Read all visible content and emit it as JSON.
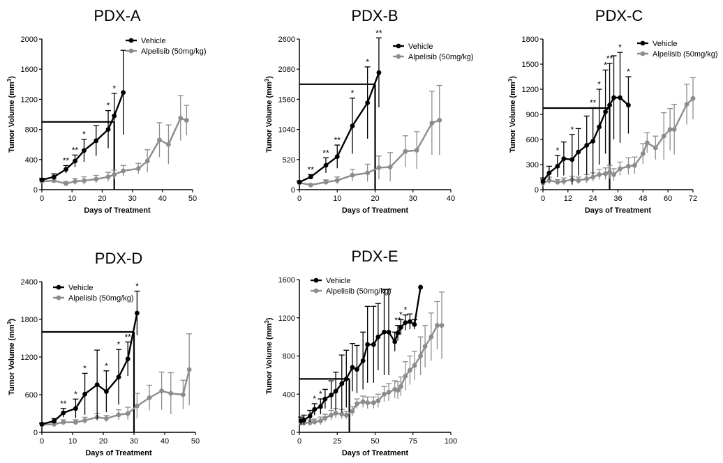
{
  "colors": {
    "vehicle": "#000000",
    "alpelisib": "#8c8c8c"
  },
  "chart_data": [
    {
      "type": "line",
      "title": "PDX-A",
      "xlabel": "Days of Treatment",
      "ylabel": "Tumor Volume (mm",
      "ylabel_sup": "3",
      "ylabel_close": ")",
      "xlim": [
        0,
        50
      ],
      "ylim": [
        0,
        2000
      ],
      "xticks": [
        0,
        10,
        20,
        30,
        40,
        50
      ],
      "yticks": [
        0,
        400,
        800,
        1200,
        1600,
        2000
      ],
      "legend_position": "top-right",
      "threshold": {
        "y": 900,
        "x": 24
      },
      "series": [
        {
          "name": "Vehicle",
          "color": "#000000",
          "x": [
            0,
            4,
            8,
            11,
            14,
            18,
            22,
            24,
            27
          ],
          "y": [
            130,
            170,
            270,
            380,
            520,
            650,
            800,
            980,
            1290
          ],
          "err": [
            20,
            40,
            50,
            80,
            150,
            200,
            250,
            300,
            560
          ],
          "stars": [
            "",
            "",
            "**",
            "**",
            "*",
            "",
            "*",
            "*",
            ""
          ]
        },
        {
          "name": "Alpelisib (50mg/kg)",
          "color": "#8c8c8c",
          "x": [
            0,
            4,
            8,
            11,
            14,
            18,
            22,
            24,
            27,
            32,
            35,
            39,
            42,
            46,
            48
          ],
          "y": [
            110,
            120,
            80,
            110,
            120,
            140,
            170,
            200,
            250,
            280,
            380,
            660,
            600,
            950,
            920
          ],
          "err": [
            20,
            30,
            30,
            40,
            50,
            50,
            60,
            60,
            70,
            70,
            150,
            230,
            260,
            300,
            200
          ],
          "stars": []
        }
      ]
    },
    {
      "type": "line",
      "title": "PDX-B",
      "xlabel": "Days of Treatment",
      "ylabel": "Tumor Volume (mm",
      "ylabel_sup": "3",
      "ylabel_close": ")",
      "xlim": [
        0,
        40
      ],
      "ylim": [
        0,
        2600
      ],
      "xticks": [
        0,
        10,
        20,
        30,
        40
      ],
      "yticks": [
        0,
        520,
        1040,
        1560,
        2080,
        2600
      ],
      "legend_position": "top-right",
      "threshold": {
        "y": 1820,
        "x": 20
      },
      "series": [
        {
          "name": "Vehicle",
          "color": "#000000",
          "x": [
            0,
            3,
            7,
            10,
            14,
            18,
            21
          ],
          "y": [
            130,
            220,
            420,
            570,
            1100,
            1500,
            2020
          ],
          "err": [
            20,
            40,
            130,
            200,
            480,
            620,
            600
          ],
          "stars": [
            "",
            "**",
            "**",
            "**",
            "*",
            "*",
            "**"
          ]
        },
        {
          "name": "Alpelisib (50mg/kg)",
          "color": "#8c8c8c",
          "x": [
            0,
            3,
            7,
            10,
            14,
            18,
            21,
            24,
            28,
            31,
            35,
            37
          ],
          "y": [
            120,
            80,
            130,
            160,
            250,
            290,
            380,
            390,
            660,
            680,
            1150,
            1200
          ],
          "err": [
            20,
            20,
            40,
            60,
            100,
            150,
            200,
            250,
            270,
            320,
            550,
            600
          ],
          "stars": []
        }
      ]
    },
    {
      "type": "line",
      "title": "PDX-C",
      "xlabel": "Days of Treatment",
      "ylabel": "Tumor Volume (mm",
      "ylabel_sup": "3",
      "ylabel_close": ")",
      "xlim": [
        0,
        72
      ],
      "ylim": [
        0,
        1800
      ],
      "xticks": [
        0,
        12,
        24,
        36,
        48,
        60,
        72
      ],
      "yticks": [
        0,
        300,
        600,
        900,
        1200,
        1500,
        1800
      ],
      "legend_position": "top-right",
      "threshold": {
        "y": 975,
        "x": 32
      },
      "series": [
        {
          "name": "Vehicle",
          "color": "#000000",
          "x": [
            0,
            3,
            7,
            10,
            14,
            17,
            21,
            24,
            27,
            30,
            32,
            34,
            37,
            41
          ],
          "y": [
            100,
            200,
            280,
            370,
            360,
            450,
            530,
            580,
            750,
            930,
            1010,
            1100,
            1100,
            1010
          ],
          "err": [
            40,
            80,
            130,
            200,
            300,
            280,
            350,
            400,
            450,
            500,
            500,
            500,
            540,
            340
          ],
          "stars": [
            "",
            "",
            "*",
            "",
            "*",
            "",
            "",
            "**",
            "*",
            "*",
            "**",
            "",
            "*",
            "*"
          ]
        },
        {
          "name": "Alpelisib (50mg/kg)",
          "color": "#8c8c8c",
          "x": [
            0,
            3,
            7,
            10,
            14,
            17,
            21,
            24,
            27,
            30,
            32,
            34,
            37,
            41,
            44,
            48,
            50,
            54,
            58,
            61,
            63,
            69,
            72
          ],
          "y": [
            80,
            110,
            90,
            100,
            120,
            110,
            130,
            150,
            180,
            190,
            210,
            180,
            250,
            280,
            290,
            430,
            560,
            500,
            640,
            720,
            720,
            1020,
            1090
          ],
          "err": [
            40,
            40,
            30,
            40,
            40,
            40,
            50,
            50,
            60,
            70,
            80,
            70,
            80,
            100,
            100,
            120,
            120,
            140,
            280,
            250,
            300,
            240,
            250
          ],
          "stars": []
        }
      ]
    },
    {
      "type": "line",
      "title": "PDX-D",
      "xlabel": "Days of Treatment",
      "ylabel": "Tumor Volume (mm",
      "ylabel_sup": "3",
      "ylabel_close": ")",
      "xlim": [
        0,
        50
      ],
      "ylim": [
        0,
        2400
      ],
      "xticks": [
        0,
        10,
        20,
        30,
        40,
        50
      ],
      "yticks": [
        0,
        600,
        1200,
        1800,
        2400
      ],
      "legend_position": "top-left",
      "threshold": {
        "y": 1600,
        "x": 30
      },
      "series": [
        {
          "name": "Vehicle",
          "color": "#000000",
          "x": [
            0,
            4,
            7,
            11,
            14,
            18,
            21,
            25,
            28,
            31
          ],
          "y": [
            130,
            180,
            310,
            380,
            610,
            760,
            650,
            880,
            1170,
            1900
          ],
          "err": [
            20,
            40,
            70,
            150,
            330,
            550,
            330,
            440,
            270,
            350
          ],
          "stars": [
            "",
            "",
            "**",
            "*",
            "*",
            "",
            "*",
            "*",
            "**",
            "*"
          ]
        },
        {
          "name": "Alpelisib (50mg/kg)",
          "color": "#8c8c8c",
          "x": [
            0,
            4,
            7,
            11,
            14,
            18,
            21,
            25,
            28,
            31,
            35,
            39,
            42,
            46,
            48
          ],
          "y": [
            120,
            130,
            160,
            160,
            190,
            240,
            220,
            280,
            300,
            420,
            550,
            660,
            620,
            600,
            1000
          ],
          "err": [
            20,
            30,
            40,
            40,
            50,
            60,
            50,
            80,
            100,
            200,
            200,
            300,
            330,
            230,
            570
          ],
          "stars": []
        }
      ]
    },
    {
      "type": "line",
      "title": "PDX-E",
      "xlabel": "Days of Treatment",
      "ylabel": "Tumor Volume (mm",
      "ylabel_sup": "3",
      "ylabel_close": ")",
      "xlim": [
        0,
        100
      ],
      "ylim": [
        0,
        1600
      ],
      "xticks": [
        0,
        25,
        50,
        75,
        100
      ],
      "yticks": [
        0,
        400,
        800,
        1200,
        1600
      ],
      "legend_position": "top-left",
      "threshold": {
        "y": 560,
        "x": 33
      },
      "series": [
        {
          "name": "Vehicle",
          "color": "#000000",
          "x": [
            1,
            3,
            7,
            10,
            14,
            17,
            21,
            24,
            28,
            31,
            35,
            38,
            42,
            45,
            49,
            52,
            56,
            59,
            63,
            65,
            67,
            70,
            73,
            76,
            80
          ],
          "y": [
            120,
            130,
            170,
            240,
            270,
            350,
            390,
            430,
            510,
            560,
            680,
            660,
            750,
            920,
            920,
            1000,
            1050,
            1050,
            950,
            1040,
            1100,
            1150,
            1160,
            1130,
            1520
          ],
          "err": [
            40,
            50,
            60,
            60,
            80,
            100,
            150,
            200,
            300,
            300,
            250,
            250,
            300,
            400,
            400,
            350,
            450,
            450,
            100,
            80,
            80,
            80,
            80,
            50,
            0
          ],
          "stars": [
            "",
            "",
            "",
            "*",
            "*",
            "",
            "",
            "",
            "",
            "",
            "",
            "",
            "",
            "",
            "",
            "",
            "",
            "",
            "",
            "**",
            "*",
            "*",
            "",
            "",
            ""
          ]
        },
        {
          "name": "Alpelisib (50mg/kg)",
          "color": "#8c8c8c",
          "x": [
            1,
            3,
            7,
            10,
            14,
            17,
            21,
            24,
            28,
            31,
            35,
            38,
            42,
            45,
            49,
            52,
            56,
            59,
            63,
            65,
            67,
            70,
            73,
            76,
            80,
            83,
            87,
            91,
            94
          ],
          "y": [
            100,
            100,
            100,
            110,
            120,
            150,
            180,
            200,
            190,
            180,
            220,
            300,
            320,
            310,
            310,
            330,
            400,
            420,
            450,
            440,
            480,
            590,
            650,
            700,
            800,
            900,
            1000,
            1120,
            1120
          ],
          "err": [
            30,
            30,
            30,
            30,
            40,
            40,
            50,
            50,
            50,
            40,
            50,
            50,
            60,
            60,
            60,
            70,
            80,
            90,
            90,
            90,
            100,
            150,
            150,
            150,
            200,
            220,
            250,
            250,
            350
          ],
          "stars": []
        }
      ]
    }
  ]
}
